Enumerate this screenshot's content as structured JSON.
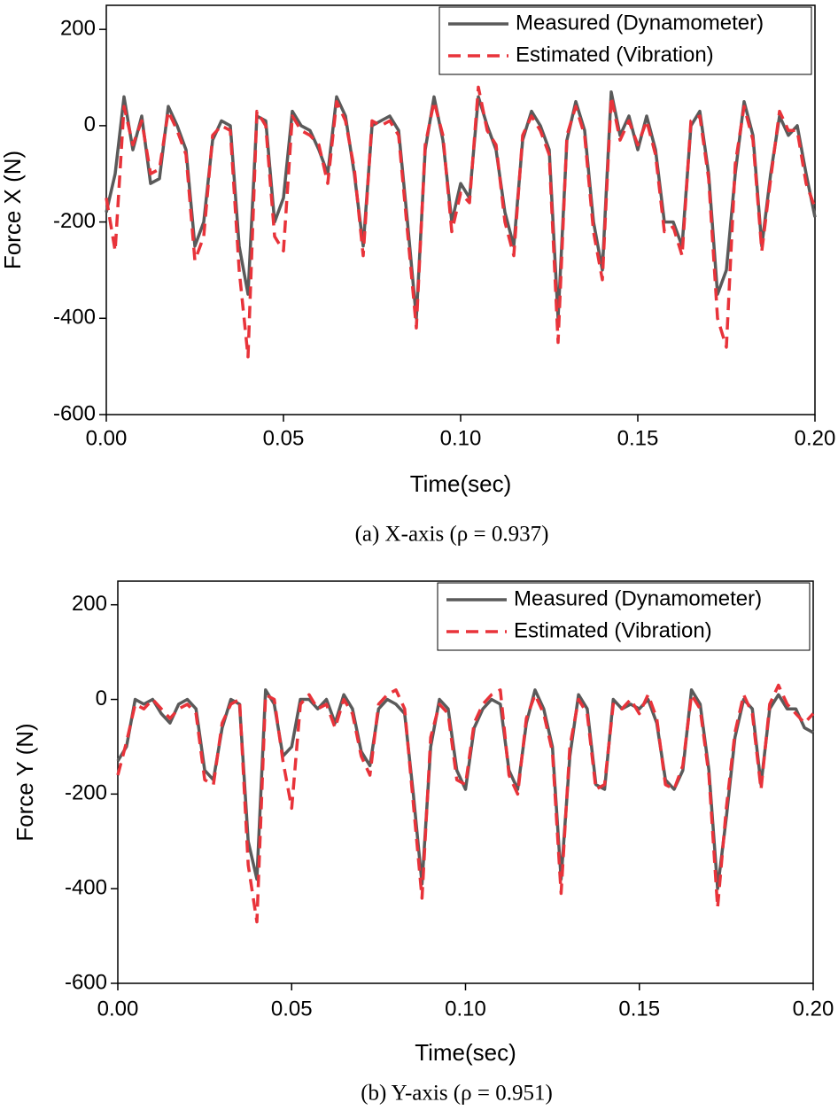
{
  "chart_data": [
    {
      "type": "line",
      "caption": "(a) X-axis (ρ = 0.937)",
      "xlabel": "Time(sec)",
      "ylabel": "Force X (N)",
      "x": [
        0,
        0.0025,
        0.005,
        0.0075,
        0.01,
        0.0125,
        0.015,
        0.0175,
        0.02,
        0.0225,
        0.025,
        0.0275,
        0.03,
        0.0325,
        0.035,
        0.0375,
        0.04,
        0.0425,
        0.045,
        0.0475,
        0.05,
        0.0525,
        0.055,
        0.0575,
        0.06,
        0.0625,
        0.065,
        0.0675,
        0.07,
        0.0725,
        0.075,
        0.0775,
        0.08,
        0.0825,
        0.085,
        0.0875,
        0.09,
        0.0925,
        0.095,
        0.0975,
        0.1,
        0.1025,
        0.105,
        0.1075,
        0.11,
        0.1125,
        0.115,
        0.1175,
        0.12,
        0.1225,
        0.125,
        0.1275,
        0.13,
        0.1325,
        0.135,
        0.1375,
        0.14,
        0.1425,
        0.145,
        0.1475,
        0.15,
        0.1525,
        0.155,
        0.1575,
        0.16,
        0.1625,
        0.165,
        0.1675,
        0.17,
        0.1725,
        0.175,
        0.1775,
        0.18,
        0.1825,
        0.185,
        0.1875,
        0.19,
        0.1925,
        0.195,
        0.1975,
        0.2
      ],
      "series": [
        {
          "name": "Measured (Dynamometer)",
          "color": "#5a5a5a",
          "style": "solid",
          "values": [
            -180,
            -100,
            60,
            -50,
            20,
            -120,
            -110,
            40,
            0,
            -50,
            -250,
            -200,
            -30,
            10,
            0,
            -250,
            -350,
            20,
            10,
            -200,
            -150,
            30,
            0,
            -10,
            -50,
            -100,
            60,
            20,
            -100,
            -250,
            0,
            10,
            20,
            -10,
            -200,
            -400,
            -50,
            60,
            -30,
            -200,
            -120,
            -150,
            60,
            0,
            -50,
            -180,
            -250,
            -30,
            30,
            0,
            -50,
            -400,
            -30,
            50,
            -10,
            -200,
            -300,
            70,
            -20,
            20,
            -50,
            20,
            -50,
            -200,
            -200,
            -250,
            0,
            30,
            -100,
            -350,
            -300,
            -100,
            50,
            -20,
            -250,
            -100,
            20,
            -20,
            0,
            -100,
            -190
          ]
        },
        {
          "name": "Estimated (Vibration)",
          "color": "#e8333a",
          "style": "dashed",
          "values": [
            -150,
            -260,
            40,
            -40,
            10,
            -100,
            -90,
            30,
            -10,
            -60,
            -280,
            -230,
            -20,
            0,
            -10,
            -300,
            -480,
            30,
            0,
            -230,
            -260,
            20,
            -10,
            -20,
            -40,
            -120,
            50,
            10,
            -90,
            -270,
            10,
            0,
            10,
            -20,
            -220,
            -420,
            -40,
            50,
            -20,
            -220,
            -140,
            -160,
            80,
            -10,
            -40,
            -200,
            -270,
            -20,
            20,
            -10,
            -60,
            -450,
            -20,
            40,
            -20,
            -220,
            -320,
            60,
            -30,
            10,
            -40,
            10,
            -60,
            -220,
            -210,
            -270,
            10,
            20,
            -110,
            -400,
            -460,
            -80,
            40,
            -30,
            -260,
            -110,
            30,
            -10,
            -10,
            -120,
            -170
          ]
        }
      ],
      "xlim": [
        0,
        0.2
      ],
      "ylim": [
        -600,
        250
      ],
      "xticks": [
        {
          "value": 0,
          "label": "0.00"
        },
        {
          "value": 0.05,
          "label": "0.05"
        },
        {
          "value": 0.1,
          "label": "0.10"
        },
        {
          "value": 0.15,
          "label": "0.15"
        },
        {
          "value": 0.2,
          "label": "0.20"
        }
      ],
      "yticks": [
        -600,
        -400,
        -200,
        0,
        200
      ],
      "legend": "upper right"
    },
    {
      "type": "line",
      "caption": "(b) Y-axis (ρ = 0.951)",
      "xlabel": "Time(sec)",
      "ylabel": "Force Y (N)",
      "x": [
        0,
        0.0025,
        0.005,
        0.0075,
        0.01,
        0.0125,
        0.015,
        0.0175,
        0.02,
        0.0225,
        0.025,
        0.0275,
        0.03,
        0.0325,
        0.035,
        0.0375,
        0.04,
        0.0425,
        0.045,
        0.0475,
        0.05,
        0.0525,
        0.055,
        0.0575,
        0.06,
        0.0625,
        0.065,
        0.0675,
        0.07,
        0.0725,
        0.075,
        0.0775,
        0.08,
        0.0825,
        0.085,
        0.0875,
        0.09,
        0.0925,
        0.095,
        0.0975,
        0.1,
        0.1025,
        0.105,
        0.1075,
        0.11,
        0.1125,
        0.115,
        0.1175,
        0.12,
        0.1225,
        0.125,
        0.1275,
        0.13,
        0.1325,
        0.135,
        0.1375,
        0.14,
        0.1425,
        0.145,
        0.1475,
        0.15,
        0.1525,
        0.155,
        0.1575,
        0.16,
        0.1625,
        0.165,
        0.1675,
        0.17,
        0.1725,
        0.175,
        0.1775,
        0.18,
        0.1825,
        0.185,
        0.1875,
        0.19,
        0.1925,
        0.195,
        0.1975,
        0.2
      ],
      "series": [
        {
          "name": "Measured (Dynamometer)",
          "color": "#5a5a5a",
          "style": "solid",
          "values": [
            -130,
            -100,
            0,
            -10,
            0,
            -30,
            -50,
            -10,
            0,
            -20,
            -150,
            -170,
            -60,
            0,
            -10,
            -300,
            -380,
            20,
            -10,
            -120,
            -100,
            0,
            0,
            -20,
            0,
            -50,
            10,
            -20,
            -110,
            -140,
            -20,
            0,
            -10,
            -30,
            -200,
            -390,
            -100,
            0,
            -20,
            -150,
            -190,
            -60,
            -20,
            0,
            -10,
            -150,
            -190,
            -50,
            20,
            -20,
            -100,
            -380,
            -120,
            10,
            -20,
            -180,
            -190,
            0,
            -20,
            -10,
            -20,
            0,
            -50,
            -170,
            -190,
            -150,
            20,
            -10,
            -150,
            -400,
            -250,
            -80,
            0,
            -20,
            -180,
            -20,
            10,
            -20,
            -20,
            -60,
            -70
          ]
        },
        {
          "name": "Estimated (Vibration)",
          "color": "#e8333a",
          "style": "dashed",
          "values": [
            -160,
            -90,
            -10,
            -20,
            0,
            -20,
            -40,
            -20,
            -10,
            -30,
            -170,
            -180,
            -50,
            -10,
            0,
            -350,
            -470,
            10,
            0,
            -130,
            -230,
            -10,
            10,
            -20,
            -10,
            -60,
            0,
            -30,
            -120,
            -160,
            -10,
            10,
            20,
            -20,
            -220,
            -420,
            -80,
            -10,
            -30,
            -170,
            -180,
            -50,
            -10,
            10,
            20,
            -160,
            -200,
            -40,
            10,
            -30,
            -110,
            -410,
            -100,
            0,
            -30,
            -190,
            -180,
            -10,
            -20,
            0,
            -30,
            10,
            -40,
            -180,
            -190,
            -140,
            10,
            -20,
            -160,
            -440,
            -230,
            -70,
            10,
            -30,
            -190,
            -10,
            30,
            -10,
            -30,
            -50,
            -30
          ]
        }
      ],
      "xlim": [
        0,
        0.2
      ],
      "ylim": [
        -600,
        250
      ],
      "xticks": [
        {
          "value": 0,
          "label": "0.00"
        },
        {
          "value": 0.05,
          "label": "0.05"
        },
        {
          "value": 0.1,
          "label": "0.10"
        },
        {
          "value": 0.15,
          "label": "0.15"
        },
        {
          "value": 0.2,
          "label": "0.20"
        }
      ],
      "yticks": [
        -600,
        -400,
        -200,
        0,
        200
      ],
      "legend": "upper right"
    }
  ]
}
